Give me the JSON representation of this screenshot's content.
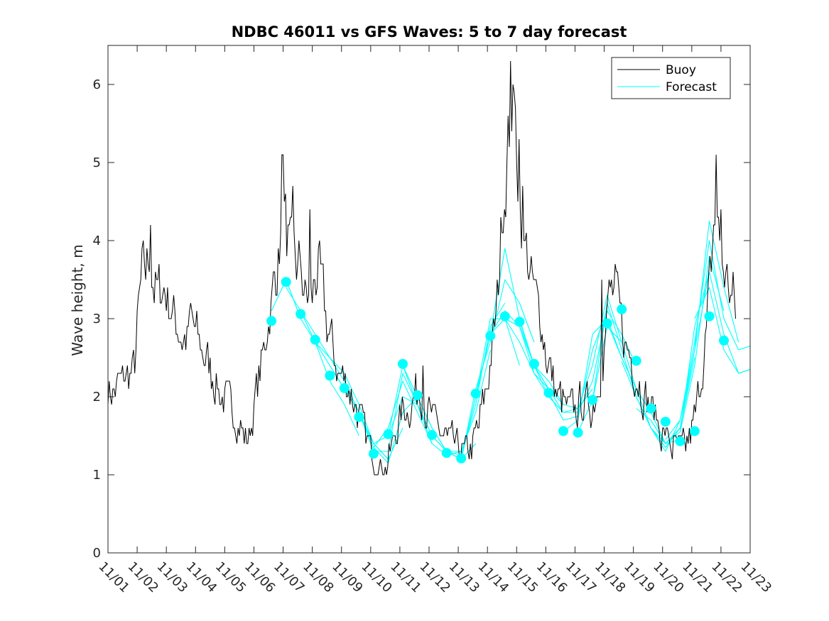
{
  "chart_data": {
    "type": "line",
    "title": "NDBC 46011 vs GFS Waves: 5 to 7 day forecast",
    "xlabel": "",
    "ylabel": "Wave height, m",
    "xlim": [
      0,
      22
    ],
    "ylim": [
      0,
      6.5
    ],
    "x_ticks": [
      0,
      1,
      2,
      3,
      4,
      5,
      6,
      7,
      8,
      9,
      10,
      11,
      12,
      13,
      14,
      15,
      16,
      17,
      18,
      19,
      20,
      21,
      22
    ],
    "x_tick_labels": [
      "11/01",
      "11/02",
      "11/03",
      "11/04",
      "11/05",
      "11/06",
      "11/07",
      "11/08",
      "11/09",
      "11/10",
      "11/11",
      "11/12",
      "11/13",
      "11/14",
      "11/15",
      "11/16",
      "11/17",
      "11/18",
      "11/19",
      "11/20",
      "11/21",
      "11/22",
      "11/23"
    ],
    "y_ticks": [
      0,
      1,
      2,
      3,
      4,
      5,
      6
    ],
    "y_tick_labels": [
      "0",
      "1",
      "2",
      "3",
      "4",
      "5",
      "6"
    ],
    "grid": false,
    "legend": {
      "placement": "top-right",
      "entries": [
        "Buoy",
        "Forecast"
      ]
    },
    "colors": {
      "buoy": "#000000",
      "forecast": "#00FFFF",
      "axes": "#262626"
    },
    "buoy_keypoints": [
      [
        0.0,
        2.2
      ],
      [
        0.1,
        2.0
      ],
      [
        0.4,
        2.2
      ],
      [
        0.9,
        2.3
      ],
      [
        1.0,
        2.9
      ],
      [
        1.15,
        3.5
      ],
      [
        1.3,
        3.6
      ],
      [
        1.45,
        3.9
      ],
      [
        1.55,
        3.5
      ],
      [
        1.7,
        3.3
      ],
      [
        1.9,
        3.4
      ],
      [
        2.1,
        3.2
      ],
      [
        2.3,
        3.0
      ],
      [
        2.5,
        2.8
      ],
      [
        2.7,
        2.7
      ],
      [
        2.85,
        3.0
      ],
      [
        3.0,
        2.8
      ],
      [
        3.2,
        2.6
      ],
      [
        3.4,
        2.5
      ],
      [
        3.55,
        2.3
      ],
      [
        3.7,
        2.2
      ],
      [
        3.9,
        2.0
      ],
      [
        4.1,
        1.9
      ],
      [
        4.3,
        1.8
      ],
      [
        4.5,
        1.7
      ],
      [
        4.75,
        1.4
      ],
      [
        4.9,
        1.6
      ],
      [
        5.1,
        2.1
      ],
      [
        5.3,
        2.5
      ],
      [
        5.45,
        2.9
      ],
      [
        5.6,
        3.2
      ],
      [
        5.75,
        3.6
      ],
      [
        5.9,
        4.0
      ],
      [
        6.0,
        4.3
      ],
      [
        6.1,
        4.1
      ],
      [
        6.25,
        3.8
      ],
      [
        6.45,
        3.6
      ],
      [
        6.65,
        3.5
      ],
      [
        6.85,
        3.2
      ],
      [
        7.0,
        3.2
      ],
      [
        7.1,
        3.5
      ],
      [
        7.2,
        3.7
      ],
      [
        7.3,
        3.4
      ],
      [
        7.5,
        2.9
      ],
      [
        7.7,
        2.6
      ],
      [
        7.9,
        2.3
      ],
      [
        8.1,
        2.2
      ],
      [
        8.3,
        2.1
      ],
      [
        8.5,
        1.9
      ],
      [
        8.65,
        1.7
      ],
      [
        8.8,
        1.5
      ],
      [
        9.0,
        1.3
      ],
      [
        9.2,
        1.2
      ],
      [
        9.4,
        1.1
      ],
      [
        9.55,
        1.1
      ],
      [
        9.7,
        1.3
      ],
      [
        9.9,
        1.6
      ],
      [
        10.1,
        1.8
      ],
      [
        10.3,
        1.9
      ],
      [
        10.5,
        2.0
      ],
      [
        10.7,
        2.1
      ],
      [
        10.9,
        1.9
      ],
      [
        11.1,
        1.7
      ],
      [
        11.3,
        1.6
      ],
      [
        11.5,
        1.5
      ],
      [
        11.7,
        1.4
      ],
      [
        11.9,
        1.35
      ],
      [
        12.1,
        1.3
      ],
      [
        12.3,
        1.25
      ],
      [
        12.5,
        1.4
      ],
      [
        12.7,
        1.6
      ],
      [
        12.85,
        1.9
      ],
      [
        13.0,
        2.2
      ],
      [
        13.1,
        2.5
      ],
      [
        13.2,
        2.7
      ],
      [
        13.3,
        3.0
      ],
      [
        13.4,
        3.6
      ],
      [
        13.5,
        4.4
      ],
      [
        13.6,
        4.8
      ],
      [
        13.7,
        5.2
      ],
      [
        13.8,
        5.6
      ],
      [
        13.85,
        5.8
      ],
      [
        13.95,
        5.4
      ],
      [
        14.1,
        4.6
      ],
      [
        14.25,
        4.0
      ],
      [
        14.4,
        3.7
      ],
      [
        14.55,
        3.4
      ],
      [
        14.7,
        3.2
      ],
      [
        14.85,
        3.0
      ],
      [
        15.0,
        2.6
      ],
      [
        15.2,
        2.3
      ],
      [
        15.4,
        2.0
      ],
      [
        15.6,
        1.9
      ],
      [
        15.8,
        1.8
      ],
      [
        16.0,
        1.85
      ],
      [
        16.2,
        1.9
      ],
      [
        16.4,
        1.9
      ],
      [
        16.6,
        1.85
      ],
      [
        16.8,
        2.2
      ],
      [
        16.95,
        2.6
      ],
      [
        17.1,
        3.0
      ],
      [
        17.25,
        3.35
      ],
      [
        17.4,
        3.3
      ],
      [
        17.55,
        3.0
      ],
      [
        17.7,
        2.7
      ],
      [
        17.9,
        2.5
      ],
      [
        18.1,
        2.3
      ],
      [
        18.3,
        2.1
      ],
      [
        18.5,
        1.9
      ],
      [
        18.7,
        1.8
      ],
      [
        18.9,
        1.6
      ],
      [
        19.1,
        1.5
      ],
      [
        19.3,
        1.4
      ],
      [
        19.5,
        1.3
      ],
      [
        19.7,
        1.3
      ],
      [
        19.9,
        1.4
      ],
      [
        20.1,
        1.7
      ],
      [
        20.3,
        2.2
      ],
      [
        20.5,
        2.8
      ],
      [
        20.65,
        3.5
      ],
      [
        20.75,
        4.2
      ],
      [
        20.85,
        4.5
      ],
      [
        20.95,
        3.9
      ],
      [
        21.1,
        3.6
      ],
      [
        21.25,
        3.4
      ],
      [
        21.4,
        3.3
      ],
      [
        21.5,
        3.0
      ]
    ],
    "buoy_spikes": [
      [
        1.45,
        4.2
      ],
      [
        5.98,
        5.1
      ],
      [
        6.1,
        4.6
      ],
      [
        6.35,
        4.7
      ],
      [
        6.55,
        4.0
      ],
      [
        6.9,
        4.4
      ],
      [
        13.8,
        6.3
      ],
      [
        13.9,
        5.9
      ],
      [
        14.1,
        5.3
      ],
      [
        14.2,
        4.7
      ],
      [
        20.85,
        5.1
      ],
      [
        21.0,
        4.4
      ],
      [
        10.8,
        2.4
      ],
      [
        16.9,
        3.5
      ],
      [
        17.15,
        3.5
      ]
    ],
    "forecast_lines": [
      [
        [
          5.6,
          3.1
        ],
        [
          6.1,
          3.5
        ],
        [
          6.6,
          3.0
        ],
        [
          7.1,
          2.7
        ],
        [
          7.6,
          2.2
        ],
        [
          8.1,
          1.9
        ],
        [
          8.6,
          1.5
        ]
      ],
      [
        [
          6.1,
          3.4
        ],
        [
          6.6,
          3.1
        ],
        [
          7.1,
          2.7
        ],
        [
          7.6,
          2.4
        ],
        [
          8.1,
          2.1
        ],
        [
          8.6,
          1.8
        ],
        [
          9.1,
          1.4
        ]
      ],
      [
        [
          6.6,
          3.1
        ],
        [
          7.1,
          2.8
        ],
        [
          7.6,
          2.5
        ],
        [
          8.1,
          2.2
        ],
        [
          8.6,
          1.8
        ],
        [
          9.1,
          1.4
        ],
        [
          9.6,
          1.2
        ]
      ],
      [
        [
          7.1,
          2.7
        ],
        [
          7.6,
          2.5
        ],
        [
          8.1,
          2.3
        ],
        [
          8.6,
          1.9
        ],
        [
          9.1,
          1.4
        ],
        [
          9.6,
          1.2
        ],
        [
          10.1,
          1.6
        ]
      ],
      [
        [
          7.6,
          2.4
        ],
        [
          8.1,
          2.1
        ],
        [
          8.6,
          1.8
        ],
        [
          9.1,
          1.35
        ],
        [
          9.6,
          1.15
        ],
        [
          10.1,
          1.8
        ],
        [
          10.6,
          2.0
        ]
      ],
      [
        [
          8.1,
          2.2
        ],
        [
          8.6,
          1.8
        ],
        [
          9.1,
          1.3
        ],
        [
          9.6,
          1.3
        ],
        [
          10.1,
          2.3
        ],
        [
          10.6,
          1.9
        ],
        [
          11.1,
          1.4
        ]
      ],
      [
        [
          8.6,
          1.8
        ],
        [
          9.1,
          1.4
        ],
        [
          9.6,
          1.5
        ],
        [
          10.1,
          2.0
        ],
        [
          10.6,
          1.9
        ],
        [
          11.1,
          1.5
        ],
        [
          11.6,
          1.3
        ]
      ],
      [
        [
          9.1,
          1.35
        ],
        [
          9.6,
          1.6
        ],
        [
          10.1,
          2.2
        ],
        [
          10.6,
          1.8
        ],
        [
          11.1,
          1.4
        ],
        [
          11.6,
          1.25
        ],
        [
          12.1,
          1.3
        ]
      ],
      [
        [
          9.6,
          1.5
        ],
        [
          10.1,
          2.4
        ],
        [
          10.6,
          2.0
        ],
        [
          11.1,
          1.6
        ],
        [
          11.6,
          1.3
        ],
        [
          12.1,
          1.2
        ],
        [
          12.6,
          1.4
        ]
      ],
      [
        [
          10.1,
          2.4
        ],
        [
          10.6,
          1.9
        ],
        [
          11.1,
          1.5
        ],
        [
          11.6,
          1.3
        ],
        [
          12.1,
          1.3
        ],
        [
          12.6,
          1.8
        ],
        [
          13.1,
          2.6
        ]
      ],
      [
        [
          10.6,
          2.0
        ],
        [
          11.1,
          1.6
        ],
        [
          11.6,
          1.3
        ],
        [
          12.1,
          1.25
        ],
        [
          12.6,
          1.9
        ],
        [
          13.1,
          2.9
        ],
        [
          13.6,
          3.2
        ]
      ],
      [
        [
          11.1,
          1.5
        ],
        [
          11.6,
          1.3
        ],
        [
          12.1,
          1.2
        ],
        [
          12.6,
          2.0
        ],
        [
          13.1,
          3.0
        ],
        [
          13.6,
          3.0
        ],
        [
          14.1,
          2.4
        ]
      ],
      [
        [
          11.6,
          1.3
        ],
        [
          12.1,
          1.2
        ],
        [
          12.6,
          2.1
        ],
        [
          13.1,
          2.7
        ],
        [
          13.6,
          3.5
        ],
        [
          14.1,
          3.2
        ],
        [
          14.6,
          2.7
        ]
      ],
      [
        [
          12.1,
          1.2
        ],
        [
          12.6,
          2.0
        ],
        [
          13.1,
          2.8
        ],
        [
          13.6,
          3.9
        ],
        [
          14.1,
          3.0
        ],
        [
          14.6,
          2.4
        ],
        [
          15.1,
          2.1
        ]
      ],
      [
        [
          12.6,
          2.0
        ],
        [
          13.1,
          2.8
        ],
        [
          13.6,
          3.1
        ],
        [
          14.1,
          2.9
        ],
        [
          14.6,
          2.3
        ],
        [
          15.1,
          2.1
        ],
        [
          15.6,
          1.9
        ]
      ],
      [
        [
          13.1,
          2.8
        ],
        [
          13.6,
          3.0
        ],
        [
          14.1,
          2.7
        ],
        [
          14.6,
          2.3
        ],
        [
          15.1,
          2.0
        ],
        [
          15.6,
          1.8
        ],
        [
          16.1,
          1.8
        ]
      ],
      [
        [
          13.6,
          3.0
        ],
        [
          14.1,
          2.9
        ],
        [
          14.6,
          2.4
        ],
        [
          15.1,
          2.2
        ],
        [
          15.6,
          1.9
        ],
        [
          16.1,
          1.85
        ],
        [
          16.6,
          2.1
        ]
      ],
      [
        [
          14.1,
          2.95
        ],
        [
          14.6,
          2.4
        ],
        [
          15.1,
          2.1
        ],
        [
          15.6,
          1.8
        ],
        [
          16.1,
          1.8
        ],
        [
          16.6,
          2.2
        ],
        [
          17.1,
          3.1
        ]
      ],
      [
        [
          14.6,
          2.4
        ],
        [
          15.1,
          2.0
        ],
        [
          15.6,
          1.8
        ],
        [
          16.1,
          1.85
        ],
        [
          16.6,
          2.4
        ],
        [
          17.1,
          3.3
        ],
        [
          17.6,
          2.7
        ]
      ],
      [
        [
          15.1,
          2.05
        ],
        [
          15.6,
          1.7
        ],
        [
          16.1,
          1.75
        ],
        [
          16.6,
          2.6
        ],
        [
          17.1,
          3.1
        ],
        [
          17.6,
          2.8
        ],
        [
          18.1,
          2.4
        ]
      ],
      [
        [
          15.6,
          1.55
        ],
        [
          16.1,
          1.7
        ],
        [
          16.6,
          2.8
        ],
        [
          17.1,
          3.0
        ],
        [
          17.6,
          2.5
        ],
        [
          18.1,
          2.1
        ],
        [
          18.6,
          1.8
        ]
      ],
      [
        [
          16.1,
          1.55
        ],
        [
          16.6,
          1.95
        ],
        [
          17.1,
          3.2
        ],
        [
          17.6,
          2.6
        ],
        [
          18.1,
          2.0
        ],
        [
          18.6,
          1.6
        ],
        [
          19.1,
          1.4
        ]
      ],
      [
        [
          16.6,
          1.95
        ],
        [
          17.1,
          2.9
        ],
        [
          17.6,
          2.7
        ],
        [
          18.1,
          2.1
        ],
        [
          18.6,
          1.8
        ],
        [
          19.1,
          1.4
        ],
        [
          19.6,
          1.45
        ]
      ],
      [
        [
          17.1,
          2.95
        ],
        [
          17.6,
          2.5
        ],
        [
          18.1,
          2.1
        ],
        [
          18.6,
          1.6
        ],
        [
          19.1,
          1.35
        ],
        [
          19.6,
          1.6
        ],
        [
          20.1,
          2.5
        ]
      ],
      [
        [
          17.6,
          2.45
        ],
        [
          18.1,
          2.0
        ],
        [
          18.6,
          1.6
        ],
        [
          19.1,
          1.3
        ],
        [
          19.6,
          1.7
        ],
        [
          20.1,
          2.6
        ],
        [
          20.6,
          3.6
        ]
      ],
      [
        [
          18.1,
          1.85
        ],
        [
          18.6,
          1.7
        ],
        [
          19.1,
          1.4
        ],
        [
          19.6,
          1.55
        ],
        [
          20.1,
          2.4
        ],
        [
          20.6,
          3.8
        ],
        [
          21.1,
          3.1
        ]
      ],
      [
        [
          18.6,
          1.7
        ],
        [
          19.1,
          1.4
        ],
        [
          19.6,
          1.6
        ],
        [
          20.1,
          2.6
        ],
        [
          20.6,
          4.25
        ],
        [
          21.1,
          3.4
        ],
        [
          21.6,
          2.7
        ]
      ],
      [
        [
          19.1,
          1.45
        ],
        [
          19.6,
          1.7
        ],
        [
          20.1,
          2.7
        ],
        [
          20.6,
          4.0
        ],
        [
          21.1,
          3.0
        ],
        [
          21.6,
          2.6
        ],
        [
          22.0,
          2.65
        ]
      ],
      [
        [
          19.6,
          1.55
        ],
        [
          20.1,
          2.9
        ],
        [
          20.6,
          3.6
        ],
        [
          21.1,
          2.8
        ],
        [
          21.6,
          2.3
        ],
        [
          22.0,
          2.35
        ]
      ],
      [
        [
          20.1,
          3.0
        ],
        [
          20.6,
          3.4
        ],
        [
          21.1,
          2.6
        ],
        [
          21.6,
          2.3
        ],
        [
          22.0,
          2.35
        ]
      ]
    ],
    "forecast_markers": [
      [
        5.6,
        2.97
      ],
      [
        6.1,
        3.47
      ],
      [
        6.6,
        3.06
      ],
      [
        7.1,
        2.73
      ],
      [
        7.6,
        2.27
      ],
      [
        8.1,
        2.11
      ],
      [
        8.6,
        1.74
      ],
      [
        9.1,
        1.27
      ],
      [
        9.6,
        1.52
      ],
      [
        10.1,
        2.42
      ],
      [
        10.6,
        2.02
      ],
      [
        11.1,
        1.51
      ],
      [
        11.6,
        1.28
      ],
      [
        12.1,
        1.21
      ],
      [
        12.6,
        2.04
      ],
      [
        13.1,
        2.78
      ],
      [
        13.6,
        3.03
      ],
      [
        14.1,
        2.96
      ],
      [
        14.6,
        2.42
      ],
      [
        15.1,
        2.05
      ],
      [
        15.6,
        1.56
      ],
      [
        16.1,
        1.54
      ],
      [
        16.6,
        1.96
      ],
      [
        17.1,
        2.94
      ],
      [
        17.6,
        3.12
      ],
      [
        18.1,
        2.46
      ],
      [
        18.6,
        1.85
      ],
      [
        19.1,
        1.68
      ],
      [
        19.6,
        1.43
      ],
      [
        20.1,
        1.56
      ],
      [
        20.6,
        3.03
      ],
      [
        21.1,
        2.72
      ]
    ]
  }
}
